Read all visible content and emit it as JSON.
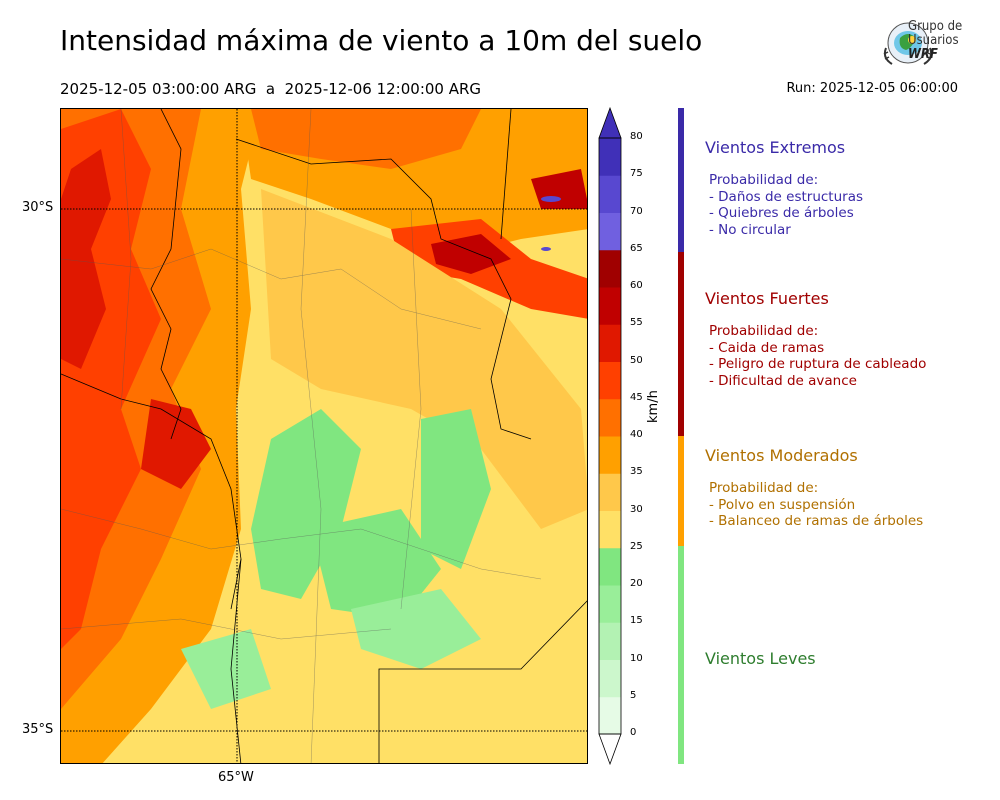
{
  "header": {
    "title": "Intensidad máxima de viento a 10m del suelo",
    "date_range": "2025-12-05 03:00:00 ARG  a  2025-12-06 12:00:00 ARG",
    "run": "Run: 2025-12-05 06:00:00"
  },
  "logo": {
    "line1": "Grupo de",
    "line2": "Usuarios",
    "line3": "WRF"
  },
  "map": {
    "lat_labels": [
      "30°S",
      "35°S"
    ],
    "lon_label": "65°W"
  },
  "colorbar": {
    "unit": "km/h",
    "ticks": [
      "0",
      "5",
      "10",
      "15",
      "20",
      "25",
      "30",
      "35",
      "40",
      "45",
      "50",
      "55",
      "60",
      "65",
      "70",
      "75",
      "80"
    ],
    "colors": [
      "#e6fbe6",
      "#ccf7cc",
      "#b3f2b3",
      "#99ee99",
      "#80e680",
      "#ffe066",
      "#ffc84a",
      "#ffa000",
      "#ff7000",
      "#ff4000",
      "#e01800",
      "#c00000",
      "#a00000",
      "#7060e0",
      "#5848d0",
      "#4030b8"
    ]
  },
  "categories": [
    {
      "title": "Vientos Extremos",
      "color": "#3a2aa8",
      "lines": [
        "Probabilidad de:",
        "- Daños de estructuras",
        "- Quiebres de árboles",
        "- No circular"
      ]
    },
    {
      "title": "Vientos Fuertes",
      "color": "#a00000",
      "lines": [
        "Probabilidad de:",
        "- Caida de ramas",
        "- Peligro de ruptura de cableado",
        "- Dificultad de avance"
      ]
    },
    {
      "title": "Vientos Moderados",
      "color": "#b07000",
      "lines": [
        "Probabilidad de:",
        "- Polvo en suspensión",
        "- Balanceo de ramas de árboles"
      ]
    },
    {
      "title": "Vientos Leves",
      "color": "#2e7d2e",
      "lines": []
    }
  ]
}
